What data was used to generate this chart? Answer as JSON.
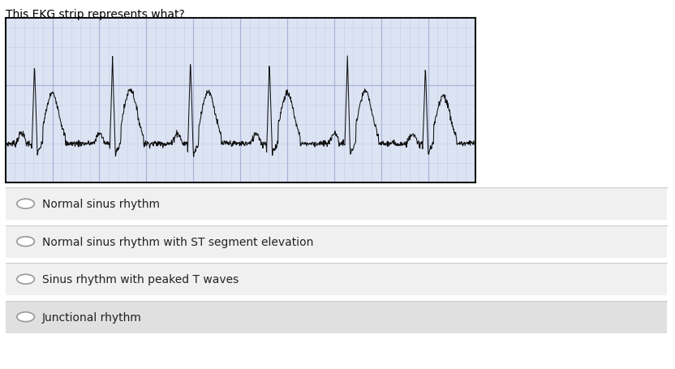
{
  "title": "This EKG strip represents what?",
  "title_fontsize": 10,
  "title_color": "#000000",
  "bg_color": "#ffffff",
  "ekg_bg_color": "#dce4f4",
  "ekg_grid_major_color": "#a8b4d8",
  "ekg_grid_minor_color": "#c4ccdf",
  "ekg_line_color": "#111111",
  "ekg_border_color": "#111111",
  "options": [
    "Normal sinus rhythm",
    "Normal sinus rhythm with ST segment elevation",
    "Sinus rhythm with peaked T waves",
    "Junctional rhythm"
  ],
  "option_bg_colors": [
    "#f0f0f0",
    "#f0f0f0",
    "#f0f0f0",
    "#e0e0e0"
  ],
  "option_text_color": "#222222",
  "option_fontsize": 10,
  "circle_color": "#888888",
  "fig_width": 8.32,
  "fig_height": 4.56
}
